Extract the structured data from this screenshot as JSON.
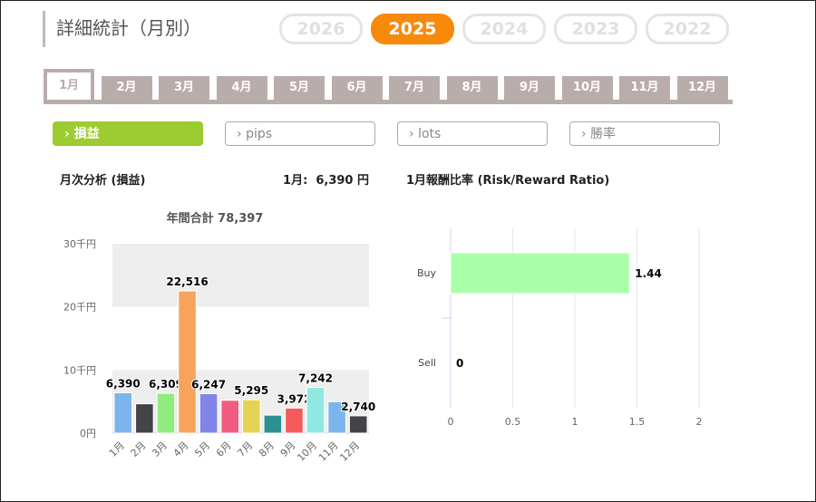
{
  "header": {
    "title": "詳細統計（月別）",
    "years": [
      "2026",
      "2025",
      "2024",
      "2023",
      "2022"
    ],
    "active_year": "2025"
  },
  "months": [
    "1月",
    "2月",
    "3月",
    "4月",
    "5月",
    "6月",
    "7月",
    "8月",
    "9月",
    "10月",
    "11月",
    "12月"
  ],
  "active_month": 0,
  "metrics": [
    {
      "label": "損益",
      "active": true
    },
    {
      "label": "pips"
    },
    {
      "label": "lots"
    },
    {
      "label": "勝率"
    }
  ],
  "left": {
    "heading": "月次分析 (損益)",
    "current": "1月:  6,390 円"
  },
  "right": {
    "heading": "1月報酬比率 (Risk/Reward Ratio)"
  },
  "chart_data": [
    {
      "type": "bar",
      "title": "年間合計 78,397",
      "categories": [
        "1月",
        "2月",
        "3月",
        "4月",
        "5月",
        "6月",
        "7月",
        "8月",
        "9月",
        "10月",
        "11月",
        "12月"
      ],
      "values": [
        6390,
        4650,
        6309,
        22516,
        6247,
        5200,
        5295,
        2850,
        3972,
        7242,
        4986,
        2740
      ],
      "labels": [
        "6,390",
        "",
        "6,309",
        "22,516",
        "6,247",
        "",
        "5,295",
        "",
        "3,972",
        "7,242",
        "",
        "2,740"
      ],
      "colors": [
        "#7cb5ec",
        "#434348",
        "#90ed7d",
        "#f7a35c",
        "#8085e9",
        "#f15c80",
        "#e4d354",
        "#2b908f",
        "#f45b5b",
        "#91e8e1",
        "#7cb5ec",
        "#434348"
      ],
      "yticks": [
        "0円",
        "10千円",
        "20千円",
        "30千円"
      ],
      "ylim": [
        0,
        30000
      ]
    },
    {
      "type": "bar",
      "orientation": "horizontal",
      "categories": [
        "Buy",
        "Sell"
      ],
      "values": [
        1.44,
        0
      ],
      "labels": [
        "1.44",
        "0"
      ],
      "xticks": [
        "0",
        "0.5",
        "1",
        "1.5",
        "2"
      ],
      "xlim": [
        0,
        2
      ],
      "color": "#a9ffa9"
    }
  ]
}
